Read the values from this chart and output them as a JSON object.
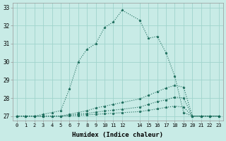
{
  "xlabel": "Humidex (Indice chaleur)",
  "background_color": "#c8ebe6",
  "grid_color": "#a0d4cc",
  "line_color": "#1a6b5a",
  "xlim": [
    -0.5,
    23.5
  ],
  "ylim": [
    26.75,
    33.25
  ],
  "xticks": [
    0,
    1,
    2,
    3,
    4,
    5,
    6,
    7,
    8,
    9,
    10,
    11,
    12,
    14,
    15,
    16,
    17,
    18,
    19,
    20,
    21,
    22,
    23
  ],
  "xtick_labels": [
    "0",
    "1",
    "2",
    "3",
    "4",
    "5",
    "6",
    "7",
    "8",
    "9",
    "10",
    "11",
    "12",
    "14",
    "15",
    "16",
    "17",
    "18",
    "19",
    "20",
    "21",
    "22",
    "23"
  ],
  "yticks": [
    27,
    28,
    29,
    30,
    31,
    32,
    33
  ],
  "lines": [
    {
      "x": [
        0,
        1,
        2,
        3,
        4,
        5,
        6,
        7,
        8,
        9,
        10,
        11,
        12,
        14,
        15,
        16,
        17,
        18,
        19,
        20,
        21,
        22,
        23
      ],
      "y": [
        27,
        27,
        27,
        27.1,
        27.2,
        27.3,
        28.5,
        30.0,
        30.7,
        31.0,
        31.9,
        32.2,
        32.85,
        32.3,
        31.3,
        31.4,
        30.5,
        29.2,
        27.2,
        27.0,
        27.0,
        27.0,
        27.0
      ]
    },
    {
      "x": [
        0,
        1,
        2,
        3,
        4,
        5,
        6,
        7,
        8,
        9,
        10,
        11,
        12,
        14,
        15,
        16,
        17,
        18,
        19,
        20,
        21,
        22,
        23
      ],
      "y": [
        27,
        27,
        27,
        27,
        27,
        27,
        27.1,
        27.2,
        27.3,
        27.45,
        27.55,
        27.65,
        27.75,
        27.95,
        28.15,
        28.35,
        28.55,
        28.7,
        28.6,
        27.0,
        27.0,
        27.0,
        27.0
      ]
    },
    {
      "x": [
        0,
        1,
        2,
        3,
        4,
        5,
        6,
        7,
        8,
        9,
        10,
        11,
        12,
        14,
        15,
        16,
        17,
        18,
        19,
        20,
        21,
        22,
        23
      ],
      "y": [
        27,
        27,
        27,
        27,
        27,
        27,
        27.05,
        27.1,
        27.15,
        27.22,
        27.28,
        27.33,
        27.38,
        27.5,
        27.65,
        27.8,
        27.9,
        28.05,
        28.0,
        27.0,
        27.0,
        27.0,
        27.0
      ]
    },
    {
      "x": [
        0,
        1,
        2,
        3,
        4,
        5,
        6,
        7,
        8,
        9,
        10,
        11,
        12,
        14,
        15,
        16,
        17,
        18,
        19,
        20,
        21,
        22,
        23
      ],
      "y": [
        27,
        27,
        27,
        27,
        27,
        27,
        27.02,
        27.04,
        27.07,
        27.1,
        27.13,
        27.16,
        27.19,
        27.25,
        27.32,
        27.4,
        27.48,
        27.55,
        27.5,
        27.0,
        27.0,
        27.0,
        27.0
      ]
    }
  ]
}
